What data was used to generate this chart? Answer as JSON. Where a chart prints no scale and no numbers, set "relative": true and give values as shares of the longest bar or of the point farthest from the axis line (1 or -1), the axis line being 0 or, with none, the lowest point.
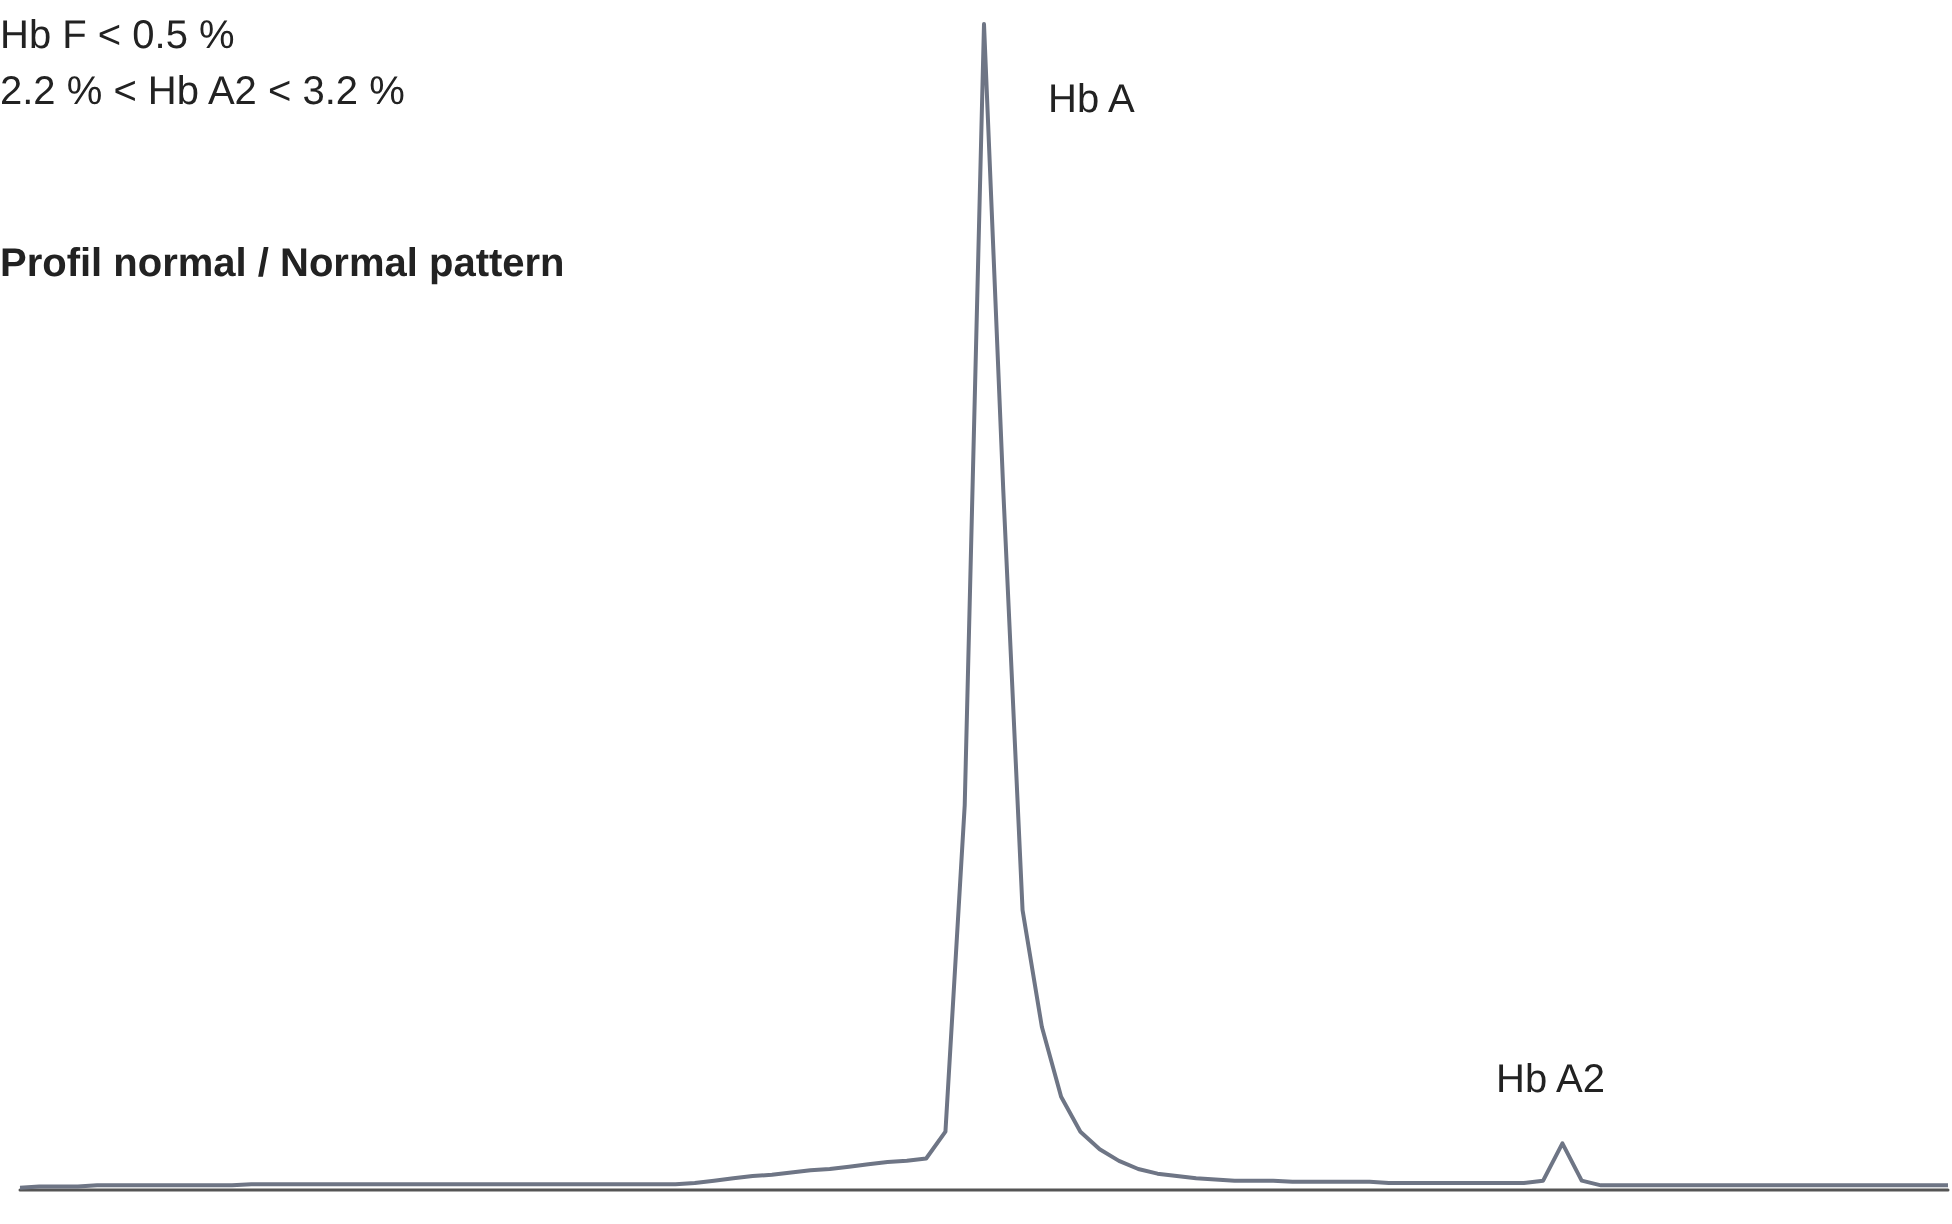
{
  "chart_data": {
    "type": "line",
    "relative": true,
    "marker": "none",
    "annotations": [
      "Hb F < 0.5 %",
      "2.2 % < Hb A2 < 3.2 %",
      "Profil normal / Normal pattern",
      "Hb A",
      "Hb A2"
    ],
    "categories": [
      null,
      null,
      null,
      null,
      null,
      null,
      null,
      null,
      null,
      null,
      null,
      null,
      null,
      null,
      null,
      null,
      null,
      null,
      null,
      null,
      null,
      null,
      null,
      null,
      null,
      null,
      null,
      null,
      null,
      null,
      null,
      null,
      null,
      null,
      null,
      null,
      null,
      null,
      null,
      null,
      null,
      null,
      null,
      null,
      null,
      null,
      null,
      null,
      null,
      null,
      null,
      null,
      null,
      null,
      null,
      null,
      null,
      null,
      null,
      null,
      null,
      null,
      null,
      null,
      null,
      null,
      null,
      null,
      null,
      null,
      null,
      null,
      null,
      null,
      null,
      null,
      null,
      null,
      null,
      null,
      null,
      null,
      null,
      null,
      null,
      null,
      null,
      null,
      null,
      null,
      null,
      null,
      null,
      null,
      null,
      null,
      null,
      null,
      null,
      null,
      null
    ],
    "series": [
      {
        "color": "#6e7585",
        "values": [
          0.002,
          0.003,
          0.003,
          0.003,
          0.004,
          0.004,
          0.004,
          0.004,
          0.004,
          0.004,
          0.004,
          0.004,
          0.005,
          0.005,
          0.005,
          0.005,
          0.005,
          0.005,
          0.005,
          0.005,
          0.005,
          0.005,
          0.005,
          0.005,
          0.005,
          0.005,
          0.005,
          0.005,
          0.005,
          0.005,
          0.005,
          0.005,
          0.005,
          0.005,
          0.005,
          0.006,
          0.008,
          0.01,
          0.012,
          0.013,
          0.015,
          0.017,
          0.018,
          0.02,
          0.022,
          0.024,
          0.025,
          0.027,
          0.05,
          0.33,
          1.0,
          0.6,
          0.24,
          0.14,
          0.08,
          0.05,
          0.035,
          0.025,
          0.018,
          0.014,
          0.012,
          0.01,
          0.009,
          0.008,
          0.008,
          0.008,
          0.007,
          0.007,
          0.007,
          0.007,
          0.007,
          0.006,
          0.006,
          0.006,
          0.006,
          0.006,
          0.006,
          0.006,
          0.006,
          0.008,
          0.04,
          0.008,
          0.004,
          0.004,
          0.004,
          0.004,
          0.004,
          0.004,
          0.004,
          0.004,
          0.004,
          0.004,
          0.004,
          0.004,
          0.004,
          0.004,
          0.004,
          0.004,
          0.004,
          0.004,
          0.004
        ]
      }
    ]
  }
}
